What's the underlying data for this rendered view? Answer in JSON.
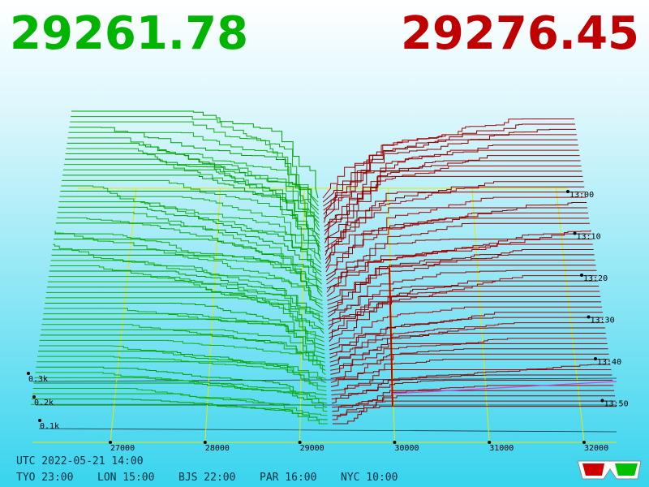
{
  "bid_price": 29261.78,
  "ask_price": 29276.45,
  "price_axis": {
    "ticks": [
      27000,
      28000,
      29000,
      30000,
      31000,
      32000
    ]
  },
  "time_axis": {
    "labels": [
      "13:00",
      "13:10",
      "13:20",
      "13:30",
      "13:40",
      "13:50"
    ]
  },
  "depth_axis": {
    "labels": [
      "0.3k",
      "0.2k",
      "0.1k"
    ]
  },
  "clock": {
    "utc": "UTC 2022-05-21 14:00",
    "cities": [
      "TYO 23:00",
      "LON 15:00",
      "BJS 22:00",
      "PAR 16:00",
      "NYC 10:00"
    ]
  }
}
